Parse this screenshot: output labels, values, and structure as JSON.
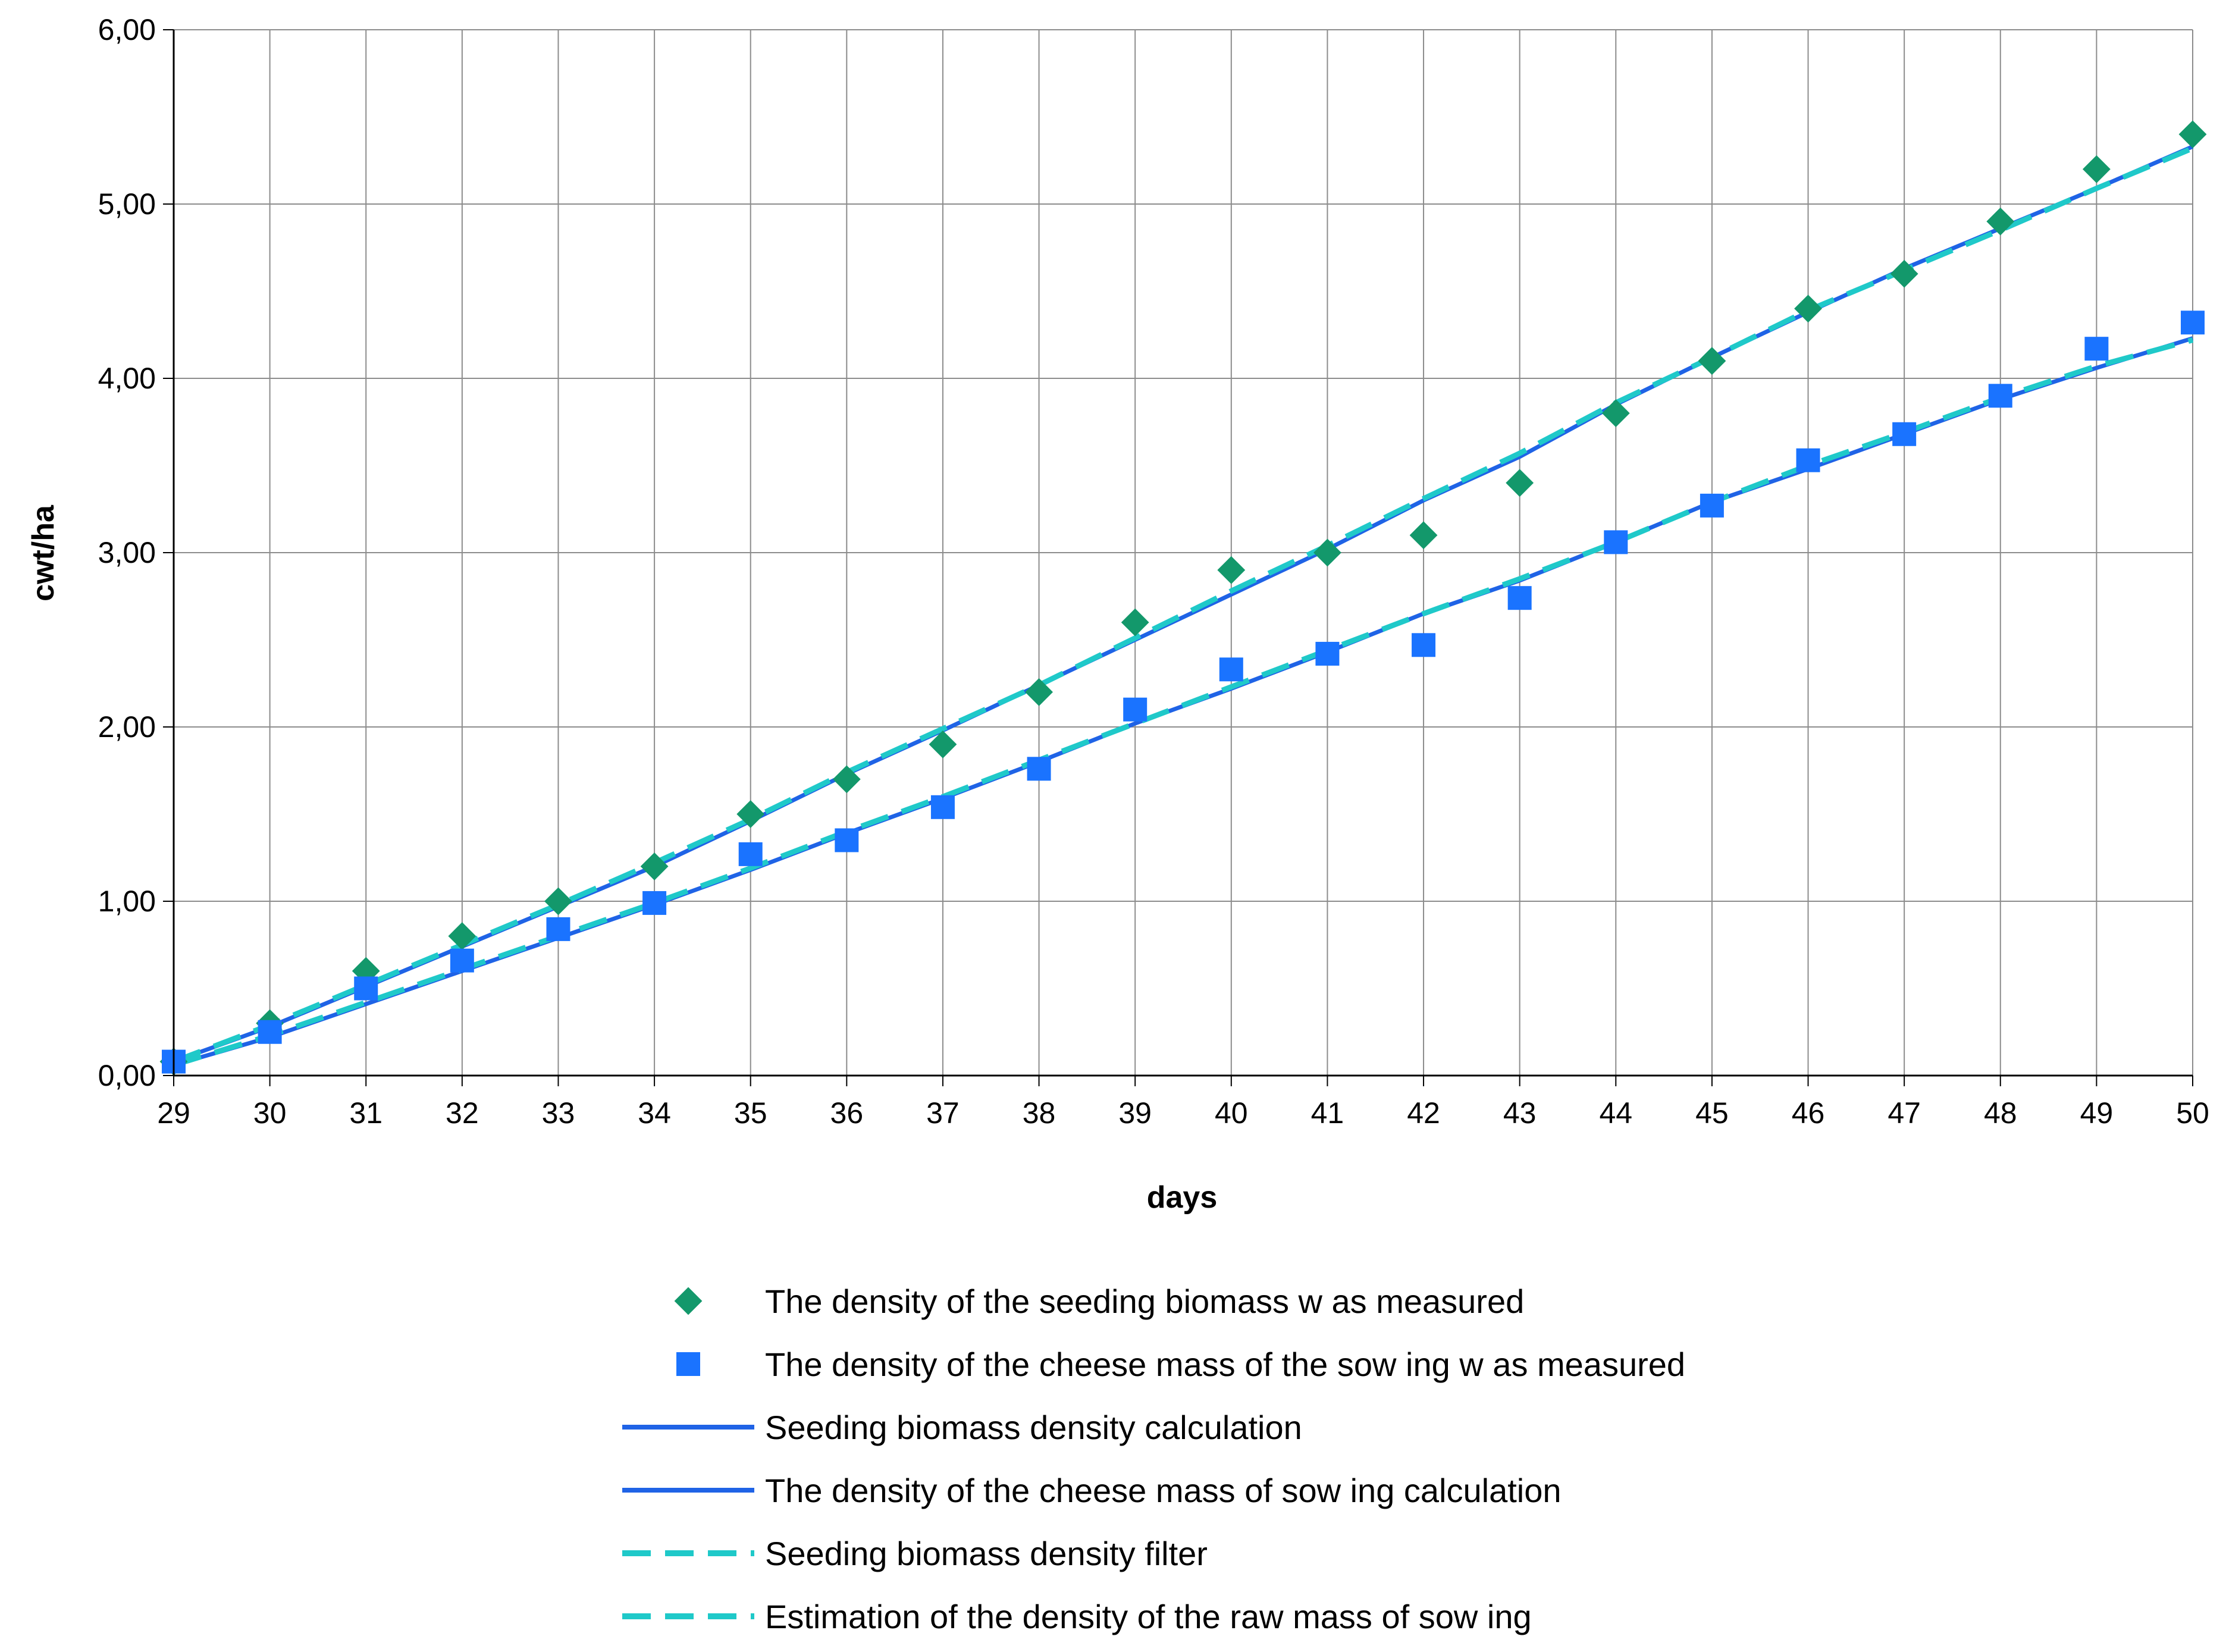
{
  "chart_data": {
    "type": "line",
    "xlabel": "days",
    "ylabel": "cwt/ha",
    "xlim": [
      29,
      50
    ],
    "ylim": [
      0,
      6
    ],
    "x_ticks": [
      "29",
      "30",
      "31",
      "32",
      "33",
      "34",
      "35",
      "36",
      "37",
      "38",
      "39",
      "40",
      "41",
      "42",
      "43",
      "44",
      "45",
      "46",
      "47",
      "48",
      "49",
      "50"
    ],
    "y_ticks": [
      "0,00",
      "1,00",
      "2,00",
      "3,00",
      "4,00",
      "5,00",
      "6,00"
    ],
    "grid": true,
    "legend_position": "bottom",
    "x": [
      29,
      30,
      31,
      32,
      33,
      34,
      35,
      36,
      37,
      38,
      39,
      40,
      41,
      42,
      43,
      44,
      45,
      46,
      47,
      48,
      49,
      50
    ],
    "series": [
      {
        "name": "The density of the seeding biomass w as measured",
        "style": "marker-diamond",
        "color": "#13986B",
        "values": [
          0.08,
          0.3,
          0.6,
          0.8,
          1.0,
          1.2,
          1.5,
          1.7,
          1.9,
          2.2,
          2.6,
          2.9,
          3.0,
          3.1,
          3.4,
          3.8,
          4.1,
          4.4,
          4.6,
          4.9,
          5.2,
          5.4
        ]
      },
      {
        "name": "The density of the cheese mass of the sow ing w as measured",
        "style": "marker-square",
        "color": "#1A73FF",
        "values": [
          0.08,
          0.25,
          0.5,
          0.66,
          0.84,
          0.99,
          1.27,
          1.35,
          1.54,
          1.76,
          2.1,
          2.33,
          2.42,
          2.47,
          2.74,
          3.06,
          3.27,
          3.53,
          3.68,
          3.9,
          4.17,
          4.32
        ]
      },
      {
        "name": "Seeding biomass density calculation",
        "style": "solid",
        "color": "#1F63E6",
        "values": [
          0.08,
          0.28,
          0.51,
          0.74,
          0.97,
          1.2,
          1.46,
          1.73,
          1.98,
          2.24,
          2.5,
          2.76,
          3.02,
          3.3,
          3.55,
          3.85,
          4.12,
          4.38,
          4.63,
          4.86,
          5.09,
          5.33
        ]
      },
      {
        "name": "The density of the cheese mass of sow ing calculation",
        "style": "solid",
        "color": "#1F63E6",
        "values": [
          0.06,
          0.22,
          0.41,
          0.6,
          0.79,
          0.98,
          1.18,
          1.39,
          1.59,
          1.8,
          2.02,
          2.22,
          2.43,
          2.65,
          2.84,
          3.06,
          3.29,
          3.48,
          3.68,
          3.88,
          4.06,
          4.23
        ]
      },
      {
        "name": "Seeding biomass density filter",
        "style": "dashed",
        "color": "#1FC9C9",
        "values": [
          0.08,
          0.29,
          0.52,
          0.75,
          0.98,
          1.22,
          1.47,
          1.74,
          1.99,
          2.24,
          2.51,
          2.78,
          3.04,
          3.31,
          3.57,
          3.86,
          4.12,
          4.39,
          4.62,
          4.85,
          5.09,
          5.32
        ]
      },
      {
        "name": "Estimation of the density of the raw mass of sow ing",
        "style": "dashed",
        "color": "#1FC9C9",
        "values": [
          0.06,
          0.23,
          0.42,
          0.61,
          0.8,
          0.99,
          1.19,
          1.4,
          1.6,
          1.81,
          2.02,
          2.23,
          2.44,
          2.65,
          2.85,
          3.06,
          3.29,
          3.5,
          3.69,
          3.89,
          4.07,
          4.22
        ]
      }
    ]
  }
}
